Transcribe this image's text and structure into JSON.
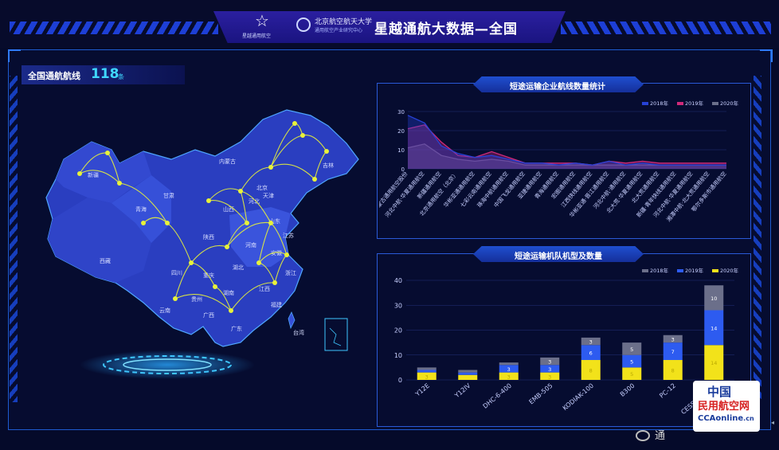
{
  "header": {
    "title": "星越通航大数据—全国",
    "logo_left_label": "星越通用航空",
    "university_name": "北京航空航天大学",
    "university_sub": "通用航空产业研究中心"
  },
  "kpi": {
    "label": "全国通航航线",
    "value": "118",
    "unit": "条"
  },
  "map": {
    "region_labels": [
      "新疆",
      "西藏",
      "青海",
      "甘肃",
      "四川",
      "云南",
      "贵州",
      "广西",
      "广东",
      "湖南",
      "湖北",
      "河南",
      "陕西",
      "山西",
      "河北",
      "北京",
      "天津",
      "山东",
      "江苏",
      "安徽",
      "浙江",
      "江西",
      "福建",
      "内蒙古",
      "吉林",
      "重庆",
      "台湾"
    ],
    "route_color": "#e8f23a"
  },
  "panel_routes": {
    "title": "短途运输企业航线数量统计"
  },
  "panel_fleet": {
    "title": "短途运输机队机型及数量"
  },
  "chart_data": [
    {
      "type": "area",
      "title": "短途运输企业航线数量统计",
      "categories": [
        "内蒙古通用航空股份",
        "河北中航·华夏通用航空",
        "新疆通用航空",
        "北京通用航空（北京）",
        "华彬亚通通用航空",
        "七彩云南通用航空",
        "珠海中航通用航空",
        "中国飞龙通用航空",
        "亚捷通用航空",
        "青海通用航空",
        "宏图通用航空",
        "江西快线通用航空",
        "华彬亚通·晋江通用航空",
        "河北中航·通用航空",
        "北大荒·华夏通用航空",
        "北大荒通用航空",
        "新疆·青年快线通用航空",
        "河北中航·华夏通用航空",
        "湘潭中航·北大荒通用航空",
        "鄂尔多斯市通用航空"
      ],
      "series": [
        {
          "name": "2018年",
          "values": [
            28,
            24,
            12,
            8,
            6,
            7,
            5,
            3,
            3,
            2,
            3,
            2,
            4,
            2,
            3,
            2,
            2,
            2,
            2,
            2
          ]
        },
        {
          "name": "2019年",
          "values": [
            21,
            23,
            14,
            7,
            6,
            9,
            6,
            3,
            3,
            3,
            3,
            2,
            4,
            3,
            4,
            3,
            3,
            3,
            3,
            3
          ]
        },
        {
          "name": "2020年",
          "values": [
            11,
            13,
            7,
            5,
            4,
            5,
            4,
            2,
            2,
            2,
            2,
            2,
            2,
            2,
            2,
            2,
            2,
            2,
            2,
            2
          ]
        }
      ],
      "colors": {
        "2018年": "#2742d6",
        "2019年": "#d02a7a",
        "2020年": "#6b6f8a"
      },
      "ylim": [
        0,
        30
      ],
      "yticks": [
        0,
        10,
        20,
        30
      ],
      "legend": "top-right"
    },
    {
      "type": "bar",
      "stacked": true,
      "title": "短途运输机队机型及数量",
      "categories": [
        "Y12E",
        "Y12IV",
        "DHC-6-400",
        "EMB-505",
        "KODIAK-100",
        "B300",
        "PC-12",
        "CESSNA-208b"
      ],
      "series": [
        {
          "name": "2020年",
          "values": [
            3,
            2,
            3,
            3,
            8,
            5,
            8,
            14
          ]
        },
        {
          "name": "2019年",
          "values": [
            1,
            1,
            3,
            3,
            6,
            5,
            7,
            14
          ]
        },
        {
          "name": "2018年",
          "values": [
            1,
            1,
            1,
            3,
            3,
            5,
            3,
            10
          ]
        }
      ],
      "colors": {
        "2018年": "#6b6f8a",
        "2019年": "#2d5bf0",
        "2020年": "#f2e21a"
      },
      "ylim": [
        0,
        40
      ],
      "yticks": [
        0,
        10,
        20,
        30,
        40
      ],
      "legend": "top-right"
    }
  ],
  "watermark": {
    "line1": "中国",
    "line2": "民用航空网",
    "line3": "CCAonline",
    "line3_suffix": ".cn",
    "wechat": "通"
  }
}
